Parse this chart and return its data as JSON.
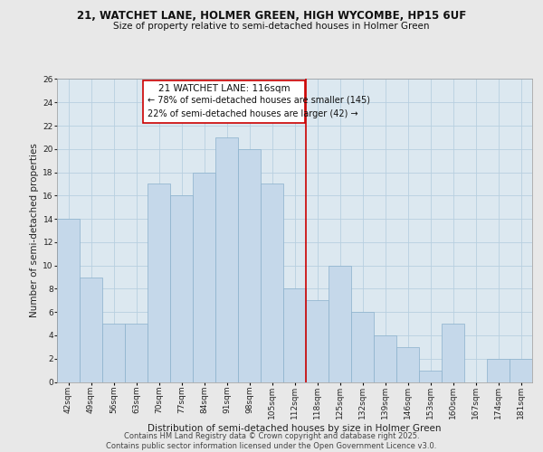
{
  "title_line1": "21, WATCHET LANE, HOLMER GREEN, HIGH WYCOMBE, HP15 6UF",
  "title_line2": "Size of property relative to semi-detached houses in Holmer Green",
  "xlabel": "Distribution of semi-detached houses by size in Holmer Green",
  "ylabel": "Number of semi-detached properties",
  "categories": [
    "42sqm",
    "49sqm",
    "56sqm",
    "63sqm",
    "70sqm",
    "77sqm",
    "84sqm",
    "91sqm",
    "98sqm",
    "105sqm",
    "112sqm",
    "118sqm",
    "125sqm",
    "132sqm",
    "139sqm",
    "146sqm",
    "153sqm",
    "160sqm",
    "167sqm",
    "174sqm",
    "181sqm"
  ],
  "values": [
    14,
    9,
    5,
    5,
    17,
    16,
    18,
    21,
    20,
    17,
    8,
    7,
    10,
    6,
    4,
    3,
    1,
    5,
    0,
    2,
    2
  ],
  "bar_color": "#c5d8ea",
  "bar_edge_color": "#8ab0cc",
  "vline_color": "#cc0000",
  "annotation_title": "21 WATCHET LANE: 116sqm",
  "annotation_line1": "← 78% of semi-detached houses are smaller (145)",
  "annotation_line2": "22% of semi-detached houses are larger (42) →",
  "annotation_box_color": "#ffffff",
  "annotation_box_edge": "#cc0000",
  "ylim": [
    0,
    26
  ],
  "yticks": [
    0,
    2,
    4,
    6,
    8,
    10,
    12,
    14,
    16,
    18,
    20,
    22,
    24,
    26
  ],
  "grid_color": "#b8cfe0",
  "background_color": "#dce8f0",
  "fig_background": "#e8e8e8",
  "footer_line1": "Contains HM Land Registry data © Crown copyright and database right 2025.",
  "footer_line2": "Contains public sector information licensed under the Open Government Licence v3.0.",
  "title_fontsize": 8.5,
  "title2_fontsize": 7.5,
  "axis_label_fontsize": 7.5,
  "tick_fontsize": 6.5,
  "annotation_title_fontsize": 7.5,
  "annotation_text_fontsize": 7.0,
  "footer_fontsize": 6.0
}
